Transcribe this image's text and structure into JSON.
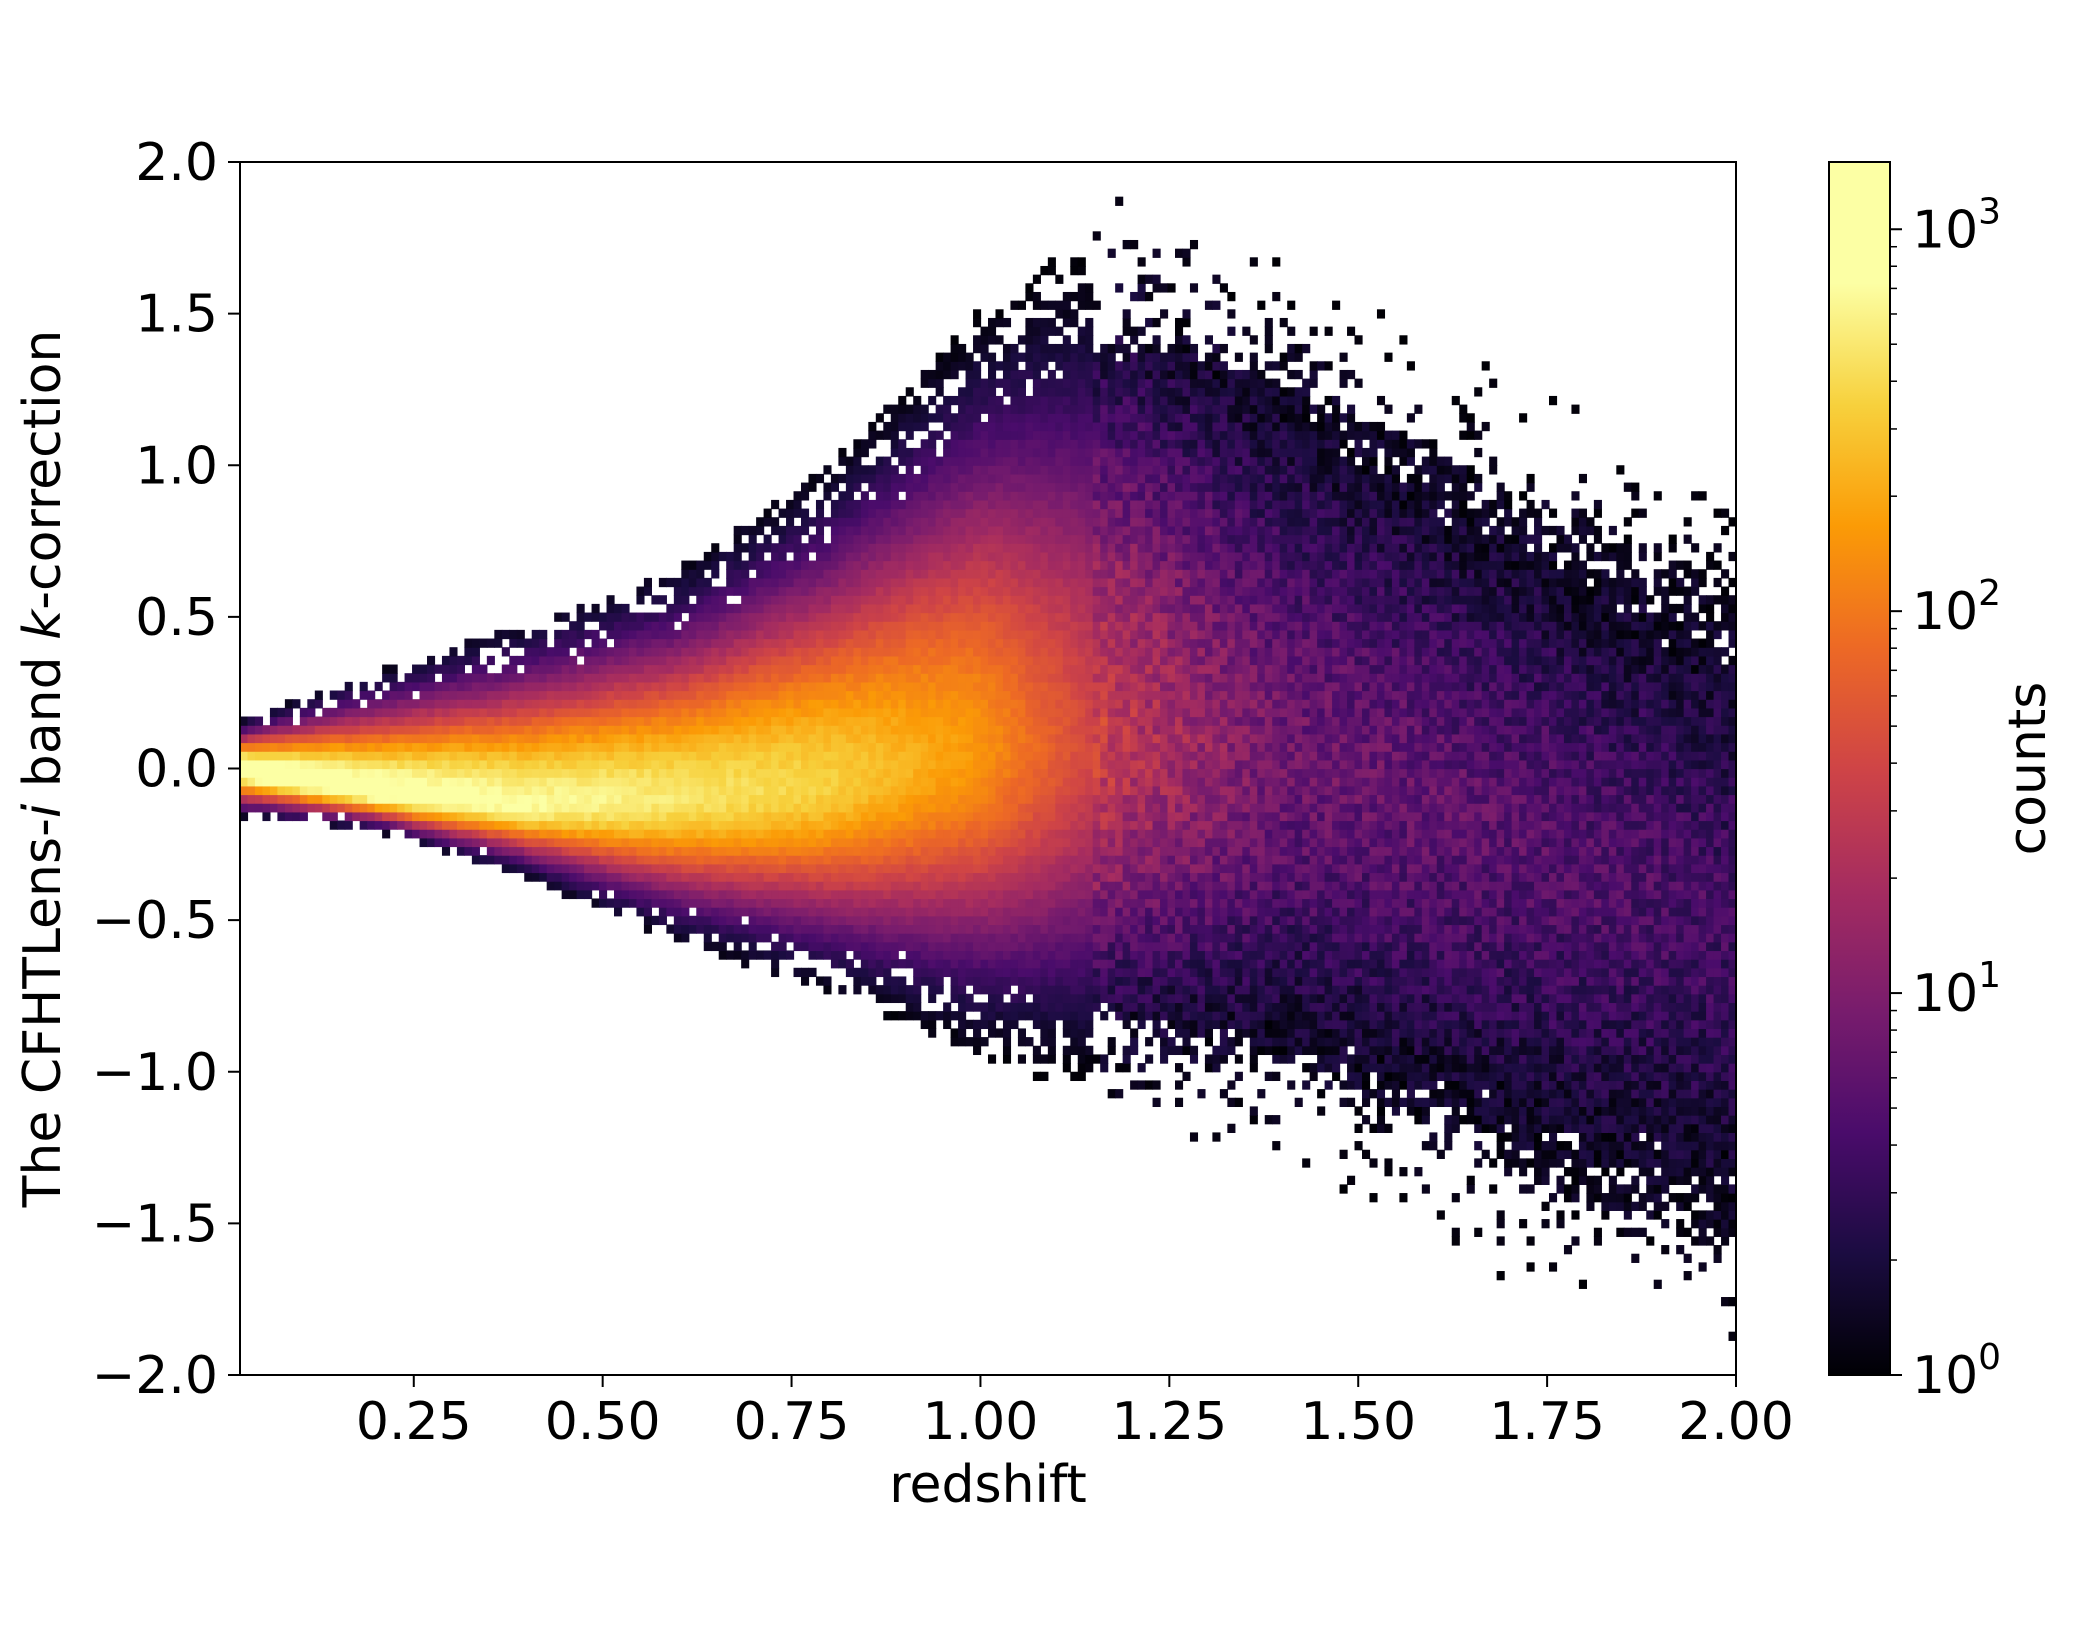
{
  "chart_data": {
    "type": "heatmap",
    "title": "",
    "xlabel": "redshift",
    "ylabel_parts": [
      "The CFHTLens-",
      "i",
      " band ",
      "k",
      "-correction"
    ],
    "xlim": [
      0.02,
      2.0
    ],
    "ylim": [
      -2.0,
      2.0
    ],
    "xticks": [
      0.25,
      0.5,
      0.75,
      1.0,
      1.25,
      1.5,
      1.75,
      2.0
    ],
    "xtick_labels": [
      "0.25",
      "0.50",
      "0.75",
      "1.00",
      "1.25",
      "1.50",
      "1.75",
      "2.00"
    ],
    "yticks": [
      -2.0,
      -1.5,
      -1.0,
      -0.5,
      0.0,
      0.5,
      1.0,
      1.5,
      2.0
    ],
    "ytick_labels": [
      "−2.0",
      "−1.5",
      "−1.0",
      "−0.5",
      "0.0",
      "0.5",
      "1.0",
      "1.5",
      "2.0"
    ],
    "colormap": "inferno",
    "colorbar": {
      "label": "counts",
      "scale": "log",
      "range": [
        1,
        1500
      ],
      "major_ticks": [
        1,
        10,
        100,
        1000
      ],
      "tick_bases": [
        "10",
        "10",
        "10",
        "10"
      ],
      "tick_exponents": [
        "0",
        "1",
        "2",
        "3"
      ]
    },
    "density_ridge": {
      "note_free": true,
      "z": [
        0.02,
        0.2,
        0.4,
        0.6,
        0.8,
        1.0,
        1.2,
        1.4,
        1.6,
        1.8,
        2.0
      ],
      "center": [
        0.0,
        -0.08,
        -0.12,
        -0.1,
        -0.05,
        0.05,
        0.1,
        0.05,
        -0.1,
        -0.3,
        -0.5
      ],
      "upper_edge": [
        0.15,
        0.3,
        0.45,
        0.62,
        0.95,
        1.45,
        1.8,
        1.7,
        1.4,
        1.2,
        1.0
      ],
      "lower_edge": [
        -0.15,
        -0.2,
        -0.35,
        -0.55,
        -0.7,
        -0.9,
        -1.1,
        -1.3,
        -1.55,
        -1.8,
        -2.0
      ],
      "peak_log_counts": [
        3.1,
        3.0,
        2.85,
        2.7,
        2.55,
        2.2,
        1.4,
        0.9,
        0.8,
        0.7,
        0.6
      ]
    }
  }
}
